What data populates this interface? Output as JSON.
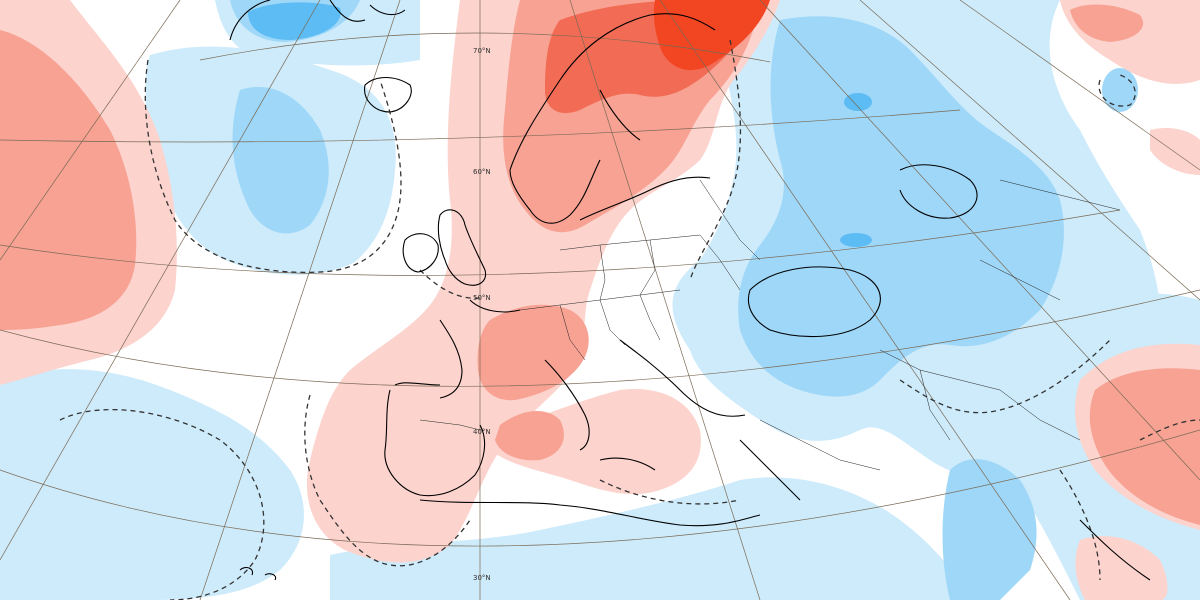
{
  "map": {
    "latitude_labels": [
      "70°N",
      "60°N",
      "50°N",
      "40°N",
      "30°N"
    ]
  },
  "colors": {
    "background": "#ffffff",
    "anomaly_pos_1": "#fcd3cd",
    "anomaly_pos_2": "#f7a293",
    "anomaly_pos_3": "#f26b54",
    "anomaly_pos_4": "#f24623",
    "anomaly_neg_1": "#cdebfb",
    "anomaly_neg_2": "#9fd7f8",
    "anomaly_neg_3": "#5cbcf3",
    "anomaly_neg_4": "#2a9ded",
    "coastline": "#000000",
    "graticule": "#7a6a55",
    "contour": "#333333"
  }
}
